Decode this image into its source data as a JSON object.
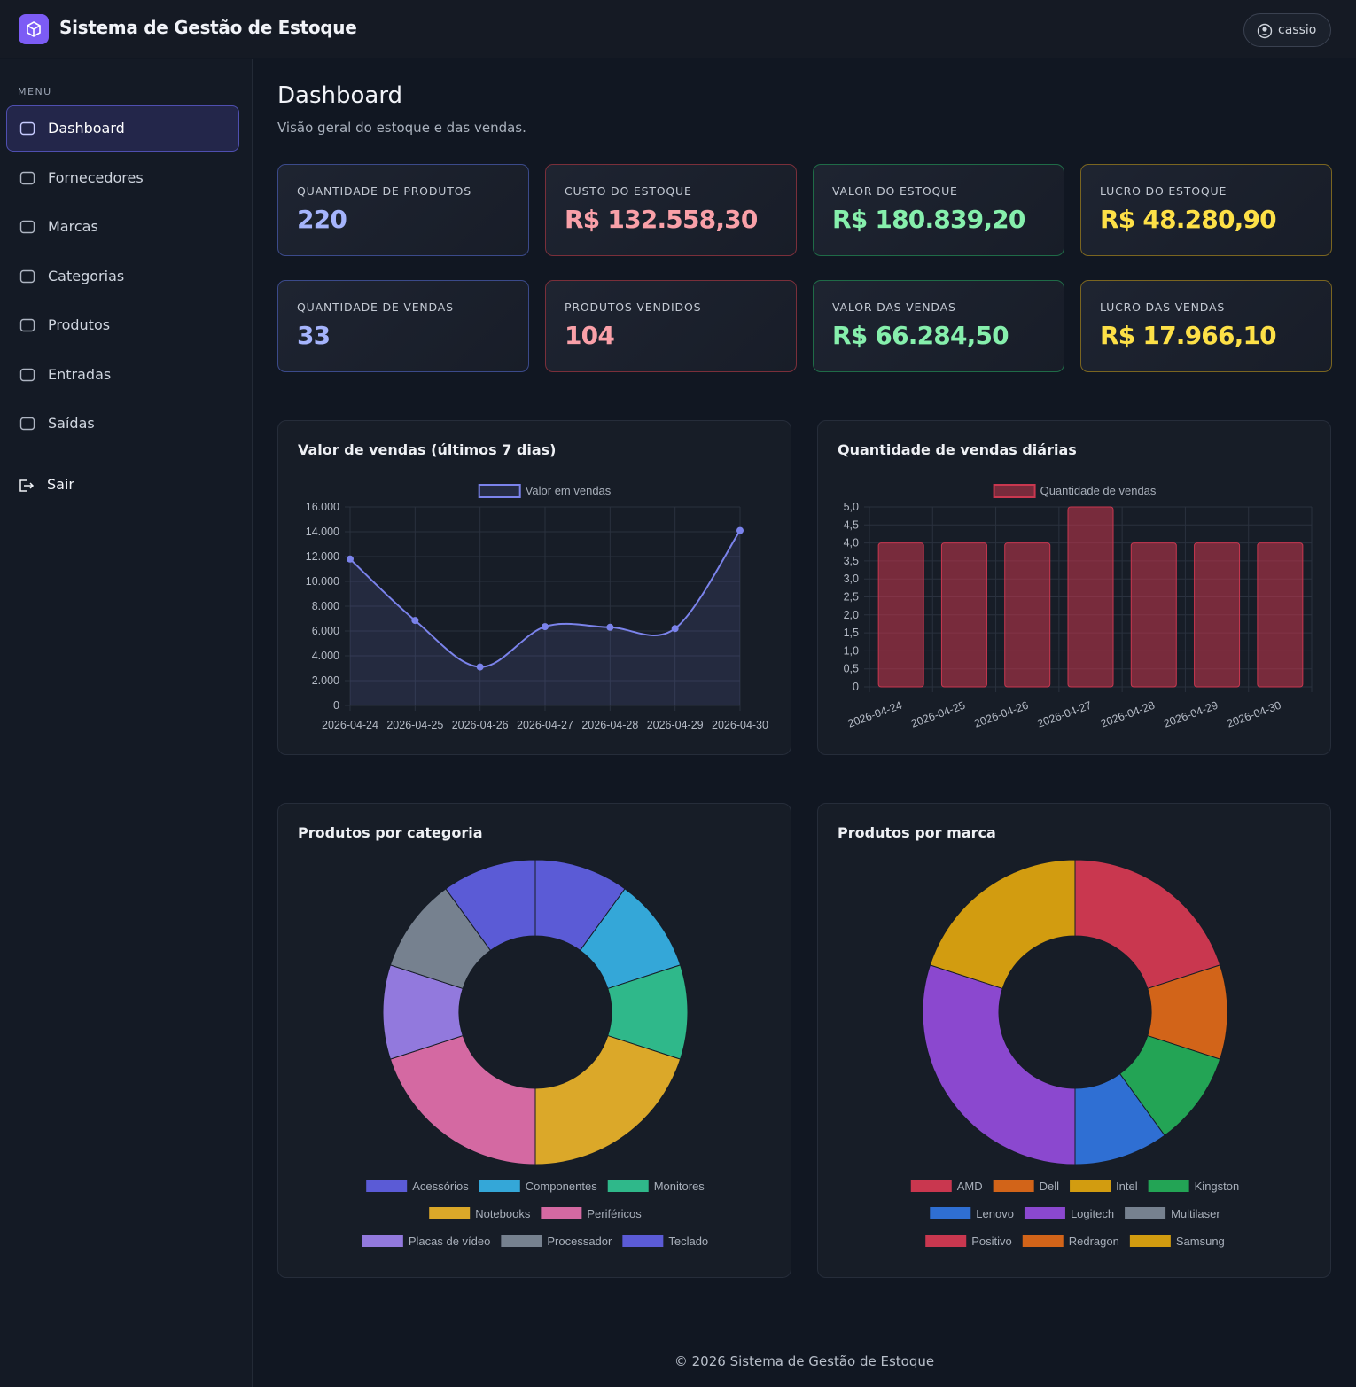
{
  "header": {
    "title": "Sistema de Gestão de Estoque",
    "user": "cassio"
  },
  "sidebar": {
    "menu_label": "MENU",
    "items": [
      "Dashboard",
      "Fornecedores",
      "Marcas",
      "Categorias",
      "Produtos",
      "Entradas",
      "Saídas"
    ],
    "logout": "Sair"
  },
  "page": {
    "title": "Dashboard",
    "subtitle": "Visão geral do estoque e das vendas."
  },
  "cards": [
    {
      "label": "QUANTIDADE DE PRODUTOS",
      "value": 220
    },
    {
      "label": "CUSTO DO ESTOQUE",
      "value": "R$ 132.558,30"
    },
    {
      "label": "VALOR DO ESTOQUE",
      "value": "R$ 180.839,20"
    },
    {
      "label": "LUCRO DO ESTOQUE",
      "value": "R$ 48.280,90"
    },
    {
      "label": "QUANTIDADE DE VENDAS",
      "value": 33
    },
    {
      "label": "PRODUTOS VENDIDOS",
      "value": 104
    },
    {
      "label": "VALOR DAS VENDAS",
      "value": "R$ 66.284,50"
    },
    {
      "label": "LUCRO DAS VENDAS",
      "value": "R$ 17.966,10"
    }
  ],
  "chart_data": [
    {
      "type": "line",
      "title": "Valor de vendas (últimos 7 dias)",
      "categories": [
        "2026-04-24",
        "2026-04-25",
        "2026-04-26",
        "2026-04-27",
        "2026-04-28",
        "2026-04-29",
        "2026-04-30"
      ],
      "series": [
        {
          "name": "Valor em vendas",
          "color": "#7b83eb",
          "values": [
            11800,
            6850,
            3100,
            6350,
            6300,
            6200,
            14100
          ]
        }
      ],
      "ylim": [
        0,
        16000
      ],
      "yticks": [
        0,
        {
          "value": 2000,
          "label": "2.000"
        },
        {
          "value": 4000,
          "label": "4.000"
        },
        {
          "value": 6000,
          "label": "6.000"
        },
        {
          "value": 8000,
          "label": "8.000"
        },
        {
          "value": 10000,
          "label": "10.000"
        },
        {
          "value": 12000,
          "label": "12.000"
        },
        {
          "value": 14000,
          "label": "14.000"
        },
        {
          "value": 16000,
          "label": "16.000"
        }
      ],
      "grid": true
    },
    {
      "type": "bar",
      "title": "Quantidade de vendas diárias",
      "categories": [
        "2026-04-24",
        "2026-04-25",
        "2026-04-26",
        "2026-04-27",
        "2026-04-28",
        "2026-04-29",
        "2026-04-30"
      ],
      "series": [
        {
          "name": "Quantidade de vendas",
          "color": "#c9374f",
          "values": [
            4,
            4,
            4,
            5,
            4,
            4,
            4
          ]
        }
      ],
      "ylim": [
        0,
        5
      ],
      "yticks": [
        0,
        {
          "value": 0.5,
          "label": "0,5"
        },
        {
          "value": 1,
          "label": "1,0"
        },
        {
          "value": 1.5,
          "label": "1,5"
        },
        {
          "value": 2,
          "label": "2,0"
        },
        {
          "value": 2.5,
          "label": "2,5"
        },
        {
          "value": 3,
          "label": "3,0"
        },
        {
          "value": 3.5,
          "label": "3,5"
        },
        {
          "value": 4,
          "label": "4,0"
        },
        {
          "value": 4.5,
          "label": "4,5"
        },
        {
          "value": 5,
          "label": "5,0"
        }
      ],
      "grid": true
    },
    {
      "type": "doughnut",
      "title": "Produtos por categoria",
      "categories": [
        "Acessórios",
        "Componentes",
        "Monitores",
        "Notebooks",
        "Periféricos",
        "Placas de vídeo",
        "Processador",
        "Teclado"
      ],
      "values": [
        22,
        22,
        22,
        44,
        44,
        22,
        22,
        22
      ],
      "colors": [
        "#5b5bd6",
        "#34a7d8",
        "#2fb88a",
        "#dba829",
        "#d469a2",
        "#9279dd",
        "#76818f",
        "#5b5bd6"
      ]
    },
    {
      "type": "doughnut",
      "title": "Produtos por marca",
      "categories": [
        "AMD",
        "Dell",
        "Intel",
        "Kingston",
        "Lenovo",
        "Logitech",
        "Multilaser",
        "Positivo",
        "Redragon",
        "Samsung"
      ],
      "values": [
        44,
        22,
        0,
        22,
        22,
        66,
        0,
        0,
        0,
        44
      ],
      "colors": [
        "#c9374f",
        "#d26419",
        "#d29c10",
        "#23a455",
        "#2f6fd3",
        "#8b48cf",
        "#76818f",
        "#c9374f",
        "#d26419",
        "#d29c10"
      ]
    }
  ],
  "footer": "© 2026 Sistema de Gestão de Estoque"
}
